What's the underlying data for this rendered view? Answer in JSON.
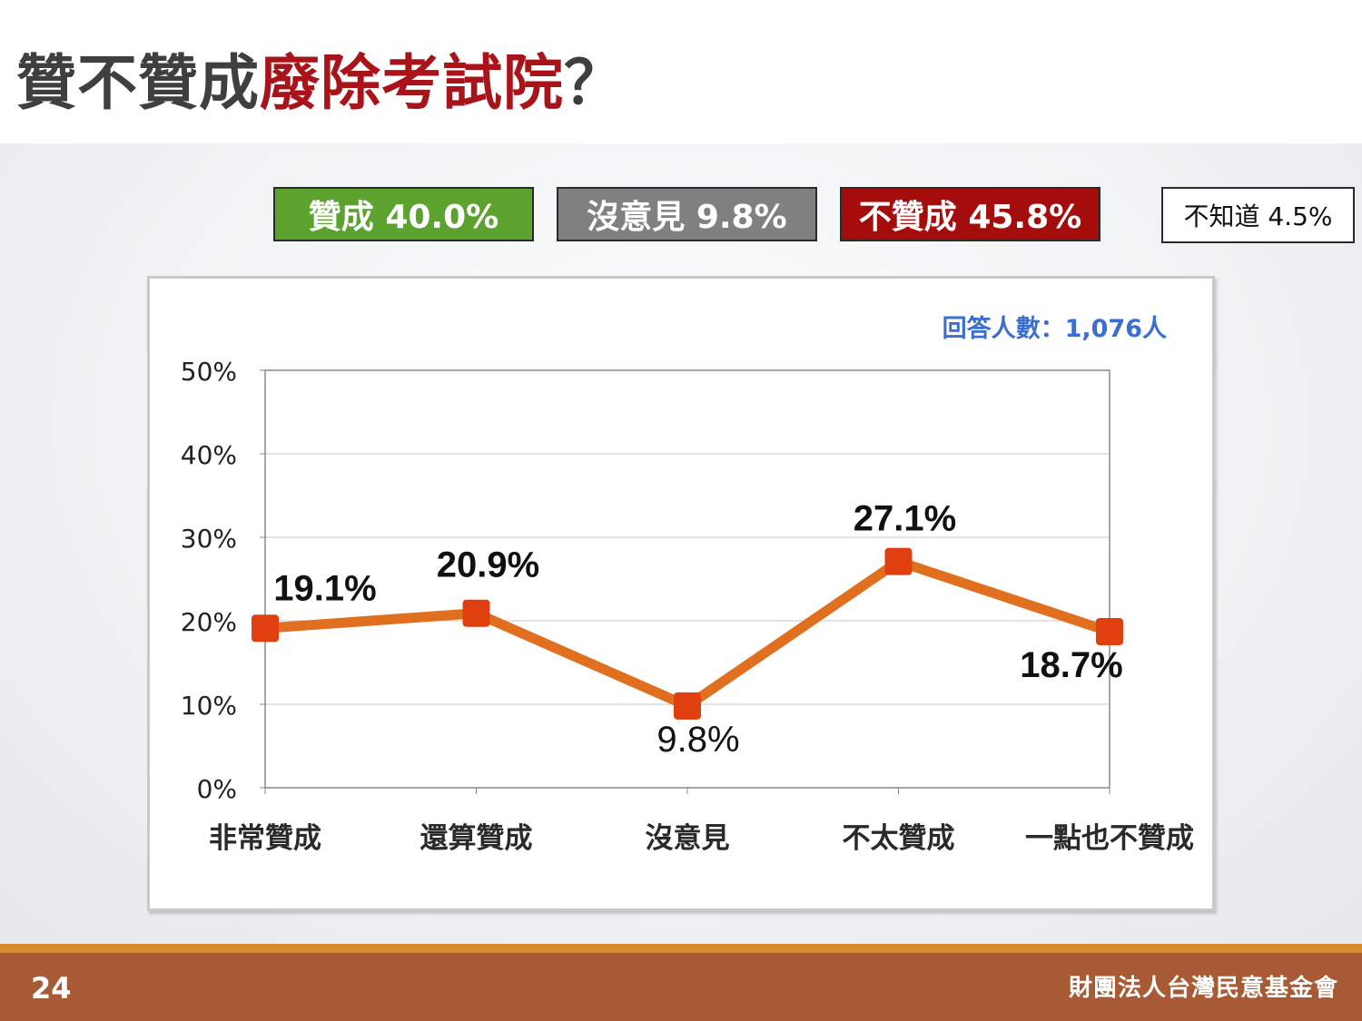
{
  "slide": {
    "title_prefix": "贊不贊成",
    "title_highlight": "廢除考試院",
    "title_suffix": "？",
    "page_number": "24",
    "organization": "財團法人台灣民意基金會"
  },
  "summary": {
    "agree": "贊成 40.0%",
    "neutral": "沒意見 9.8%",
    "disagree": "不贊成 45.8%",
    "unknown": "不知道 4.5%"
  },
  "colors": {
    "agree": "#5ba22e",
    "neutral": "#808080",
    "disagree": "#a50c0c",
    "line": "#e07020",
    "marker": "#e0400f",
    "respondents_text": "#3a6fcf"
  },
  "chart_data": {
    "type": "line",
    "categories": [
      "非常贊成",
      "還算贊成",
      "沒意見",
      "不太贊成",
      "一點也不贊成"
    ],
    "values": [
      19.1,
      20.9,
      9.8,
      27.1,
      18.7
    ],
    "data_labels": [
      "19.1%",
      "20.9%",
      "9.8%",
      "27.1%",
      "18.7%"
    ],
    "y_ticks": [
      "0%",
      "10%",
      "20%",
      "30%",
      "40%",
      "50%"
    ],
    "y_tick_values": [
      0,
      10,
      20,
      30,
      40,
      50
    ],
    "ylim": [
      0,
      50
    ],
    "grid": true,
    "respondents": "回答人數：1,076人"
  }
}
